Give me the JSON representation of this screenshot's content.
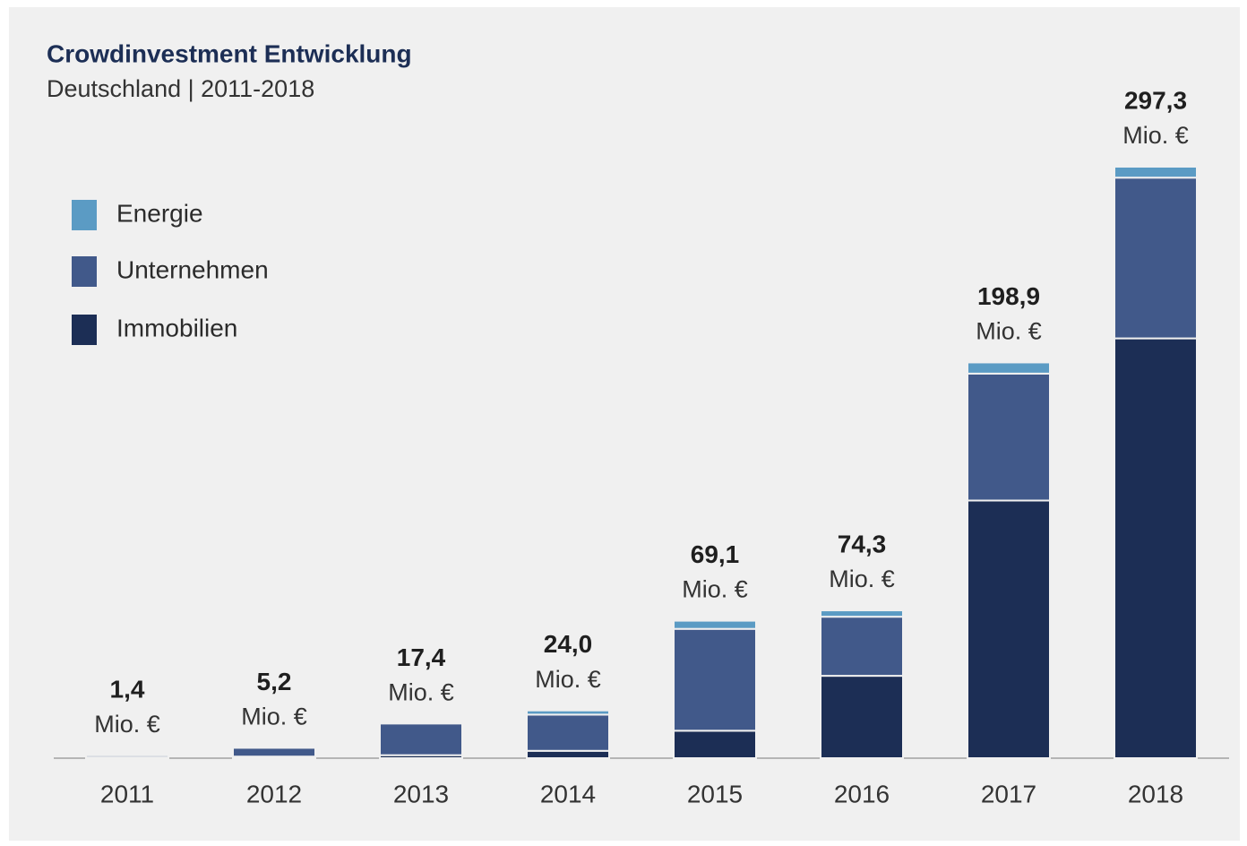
{
  "chart_data": {
    "type": "stacked_bar",
    "title": "Crowdinvestment Entwicklung",
    "subtitle": "Deutschland | 2011-2018",
    "categories": [
      "2011",
      "2012",
      "2013",
      "2014",
      "2015",
      "2016",
      "2017",
      "2018"
    ],
    "series": [
      {
        "name": "Immobilien",
        "color": "#1c2e55",
        "values": [
          0.4,
          0.8,
          1.5,
          3.7,
          13.8,
          41.4,
          129.5,
          211.0
        ]
      },
      {
        "name": "Unternehmen",
        "color": "#41598a",
        "values": [
          1.0,
          4.4,
          15.9,
          18.2,
          51.2,
          29.7,
          63.8,
          80.8
        ]
      },
      {
        "name": "Energie",
        "color": "#5b9bc4",
        "values": [
          0,
          0,
          0,
          2.1,
          4.1,
          3.2,
          5.6,
          5.5
        ]
      }
    ],
    "totals": [
      1.4,
      5.2,
      17.4,
      24.0,
      69.1,
      74.3,
      198.9,
      297.3
    ],
    "total_labels": [
      "1,4",
      "5,2",
      "17,4",
      "24,0",
      "69,1",
      "74,3",
      "198,9",
      "297,3"
    ],
    "unit": "Mio. €",
    "ylim": [
      0,
      300
    ],
    "legend": "top-left"
  }
}
